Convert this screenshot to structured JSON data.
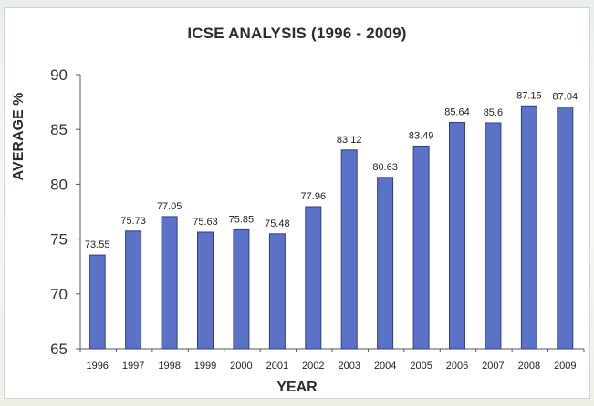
{
  "chart_data": {
    "type": "bar",
    "title": "ICSE ANALYSIS (1996 - 2009)",
    "xlabel": "YEAR",
    "ylabel": "AVERAGE %",
    "ylim": [
      65,
      90
    ],
    "yticks": [
      "65",
      "70",
      "75",
      "80",
      "85",
      "90"
    ],
    "grid": false,
    "bar_color": "#5b72c6",
    "bar_edge": "#2f3f88",
    "categories": [
      "1996",
      "1997",
      "1998",
      "1999",
      "2000",
      "2001",
      "2002",
      "2003",
      "2004",
      "2005",
      "2006",
      "2007",
      "2008",
      "2009"
    ],
    "values": [
      73.55,
      75.73,
      77.05,
      75.63,
      75.85,
      75.48,
      77.96,
      83.12,
      80.63,
      83.49,
      85.64,
      85.6,
      87.15,
      87.04
    ],
    "value_labels": [
      "73.55",
      "75.73",
      "77.05",
      "75.63",
      "75.85",
      "75.48",
      "77.96",
      "83.12",
      "80.63",
      "83.49",
      "85.64",
      "85.6",
      "87.15",
      "87.04"
    ]
  }
}
